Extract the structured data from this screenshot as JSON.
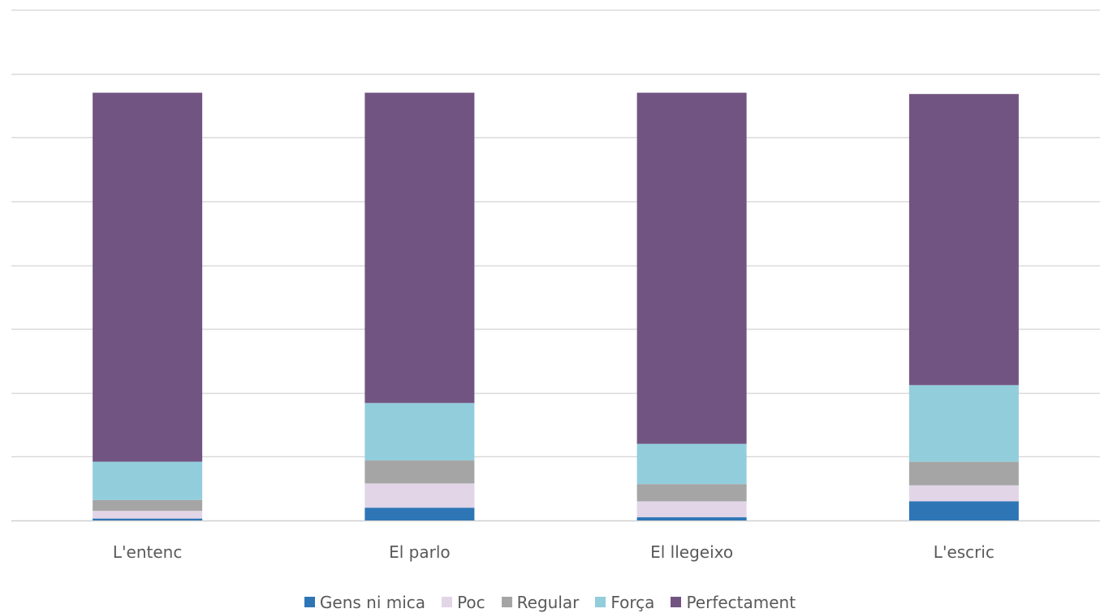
{
  "chart_data": {
    "type": "bar",
    "stacked": true,
    "categories": [
      "L'entenc",
      "El parlo",
      "El llegeixo",
      "L'escric"
    ],
    "series": [
      {
        "name": "Gens ni mica",
        "color": "#2E75B6",
        "values": [
          0.3,
          2.0,
          0.5,
          3.0
        ]
      },
      {
        "name": "Poc",
        "color": "#E1D5E7",
        "values": [
          1.2,
          3.8,
          2.5,
          2.5
        ]
      },
      {
        "name": "Regular",
        "color": "#A5A5A5",
        "values": [
          1.7,
          3.6,
          2.7,
          3.7
        ]
      },
      {
        "name": "Força",
        "color": "#92CDDC",
        "values": [
          6.0,
          9.0,
          6.3,
          12.0
        ]
      },
      {
        "name": "Perfectament",
        "color": "#725482",
        "values": [
          57.8,
          48.6,
          55.0,
          45.6
        ]
      }
    ],
    "ylim": [
      0,
      80
    ],
    "gridlines": 8,
    "grid": true,
    "legend_position": "bottom"
  }
}
